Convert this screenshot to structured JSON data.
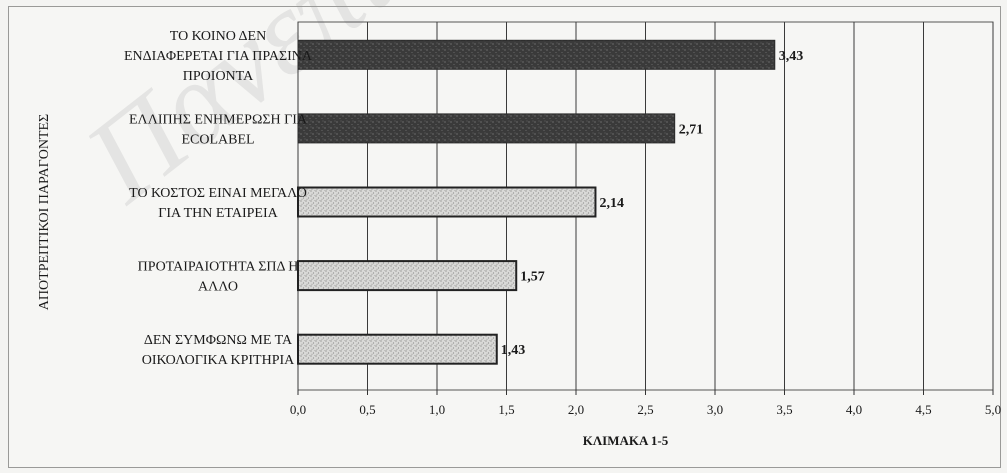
{
  "chart_data": {
    "type": "bar",
    "orientation": "horizontal",
    "categories": [
      [
        "ΤΟ ΚΟΙΝΟ ΔΕΝ",
        "ΕΝΔΙΑΦΕΡΕΤΑΙ ΓΙΑ ΠΡΑΣΙΝΑ",
        "ΠΡΟΙΟΝΤΑ"
      ],
      [
        "ΕΛΛΙΠΗΣ ΕΝΗΜΕΡΩΣΗ ΓΙΑ",
        "ECOLABEL"
      ],
      [
        "ΤΟ ΚΟΣΤΟΣ ΕΙΝΑΙ ΜΕΓΑΛΟ",
        "ΓΙΑ ΤΗΝ ΕΤΑΙΡΕΙΑ"
      ],
      [
        "ΠΡΟΤΑΙΡΑΙΟΤΗΤΑ ΣΠΔ Η",
        "ΑΛΛΟ"
      ],
      [
        "ΔΕΝ ΣΥΜΦΩΝΩ ΜΕ ΤΑ",
        "ΟΙΚΟΛΟΓΙΚΑ ΚΡΙΤΗΡΙΑ"
      ]
    ],
    "values": [
      3.43,
      2.71,
      2.14,
      1.57,
      1.43
    ],
    "value_labels": [
      "3,43",
      "2,71",
      "2,14",
      "1,57",
      "1,43"
    ],
    "bar_styles": [
      "dark",
      "dark",
      "light",
      "light",
      "light"
    ],
    "xlabel": "ΚΛΙΜΑΚΑ 1-5",
    "ylabel": "ΑΠΟΤΡΕΠΤΙΚΟΙ ΠΑΡΑΓΟΝΤΕΣ",
    "xlim": [
      0,
      5
    ],
    "xticks": [
      0,
      0.5,
      1,
      1.5,
      2,
      2.5,
      3,
      3.5,
      4,
      4.5,
      5
    ],
    "xtick_labels": [
      "0,0",
      "0,5",
      "1,0",
      "1,5",
      "2,0",
      "2,5",
      "3,0",
      "3,5",
      "4,0",
      "4,5",
      "5,0"
    ],
    "grid": true,
    "colors": {
      "dark_bar": "#3c3c3c",
      "light_bar": "#d6d6d4",
      "grid": "#3a3a3a"
    }
  },
  "watermark": "Πανεπιστήμιο"
}
